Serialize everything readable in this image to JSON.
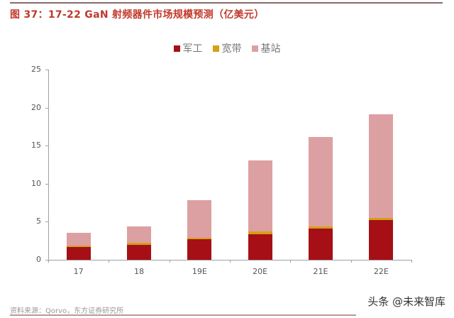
{
  "figure": {
    "title": "图 37：17-22 GaN 射频器件市场规模预测（亿美元）",
    "source": "资料来源：Qorvo，东方证券研究所",
    "watermark": "头条 @未来智库"
  },
  "legend": [
    {
      "label": "军工",
      "color": "#a50f15"
    },
    {
      "label": "宽带",
      "color": "#d4a017"
    },
    {
      "label": "基站",
      "color": "#dda0a2"
    }
  ],
  "y_ticks": [
    "0",
    "5",
    "10",
    "15",
    "20",
    "25"
  ],
  "chart_data": {
    "type": "bar",
    "stacked": true,
    "title": "17-22 GaN 射频器件市场规模预测（亿美元）",
    "xlabel": "",
    "ylabel": "",
    "ylim": [
      0,
      25
    ],
    "yticks": [
      0,
      5,
      10,
      15,
      20,
      25
    ],
    "grid": false,
    "legend_position": "top",
    "categories": [
      "17",
      "18",
      "19E",
      "20E",
      "21E",
      "22E"
    ],
    "series": [
      {
        "name": "军工",
        "color": "#a50f15",
        "values": [
          1.7,
          2.0,
          2.7,
          3.4,
          4.1,
          5.2
        ]
      },
      {
        "name": "宽带",
        "color": "#d4a017",
        "values": [
          0.2,
          0.2,
          0.2,
          0.3,
          0.3,
          0.3
        ]
      },
      {
        "name": "基站",
        "color": "#dda0a2",
        "values": [
          1.6,
          2.2,
          4.9,
          9.4,
          11.7,
          13.6
        ]
      }
    ],
    "totals": [
      3.5,
      4.4,
      7.8,
      13.1,
      16.1,
      19.1
    ]
  }
}
